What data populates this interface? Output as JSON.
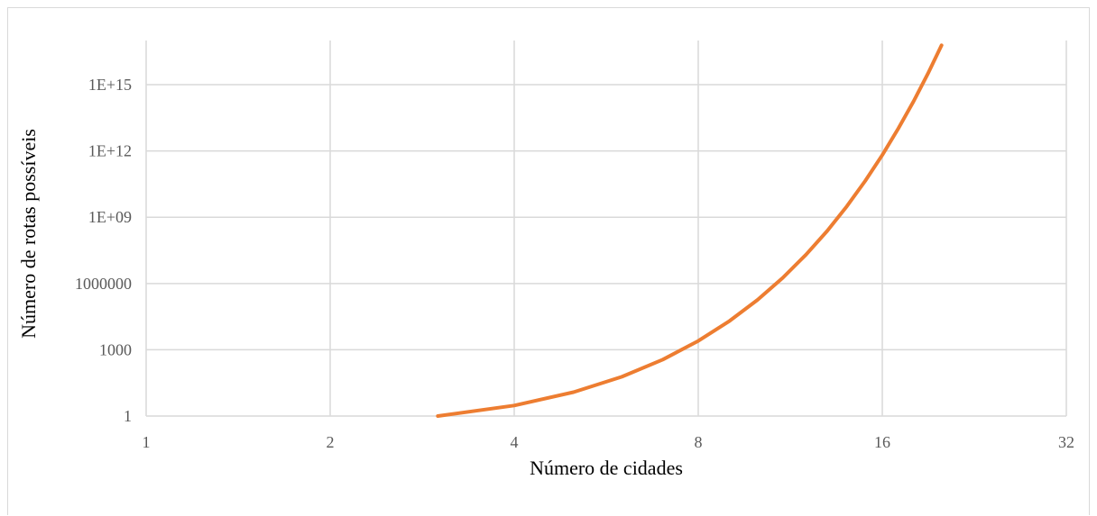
{
  "chart_data": {
    "type": "line",
    "title": "",
    "xlabel": "Número de cidades",
    "ylabel": "Número de rotas possíveis",
    "x_scale": "log2",
    "y_scale": "log10",
    "xlim": [
      1,
      32
    ],
    "ylim": [
      1,
      1e+17
    ],
    "x_ticks": [
      1,
      2,
      4,
      8,
      16,
      32
    ],
    "x_tick_labels": [
      "1",
      "2",
      "4",
      "8",
      "16",
      "32"
    ],
    "y_ticks": [
      1,
      1000,
      1000000,
      1000000000,
      1000000000000,
      1000000000000000
    ],
    "y_tick_labels": [
      "1",
      "1000",
      "1000000",
      "1E+09",
      "1E+12",
      "1E+15"
    ],
    "grid": true,
    "legend": "none",
    "colors": {
      "series": "#ed7d31",
      "grid": "#d9d9d9",
      "tick_text": "#595959"
    },
    "series": [
      {
        "x": [
          3,
          4,
          5,
          6,
          7,
          8,
          9,
          10,
          11,
          12,
          13,
          14,
          15,
          16,
          17,
          18,
          19,
          20
        ],
        "values": [
          1,
          3,
          12,
          60,
          360,
          2520,
          20160,
          181440,
          1814400,
          19958400,
          239500800,
          3113510400,
          43589145600,
          653837184000,
          10461394944000,
          177843714048000,
          3201186852864000,
          60822550204416000
        ]
      }
    ]
  }
}
